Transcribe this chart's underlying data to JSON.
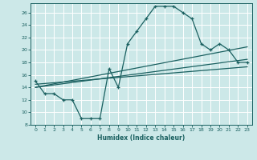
{
  "xlabel": "Humidex (Indice chaleur)",
  "ylabel": "",
  "bg_color": "#cce8e8",
  "grid_color": "#ffffff",
  "line_color": "#1a6060",
  "xlim": [
    -0.5,
    23.5
  ],
  "ylim": [
    8,
    27.5
  ],
  "xticks": [
    0,
    1,
    2,
    3,
    4,
    5,
    6,
    7,
    8,
    9,
    10,
    11,
    12,
    13,
    14,
    15,
    16,
    17,
    18,
    19,
    20,
    21,
    22,
    23
  ],
  "yticks": [
    8,
    10,
    12,
    14,
    16,
    18,
    20,
    22,
    24,
    26
  ],
  "main_x": [
    0,
    1,
    2,
    3,
    4,
    5,
    6,
    7,
    8,
    9,
    10,
    11,
    12,
    13,
    14,
    15,
    16,
    17,
    18,
    19,
    20,
    21,
    22,
    23
  ],
  "main_y": [
    15,
    13,
    13,
    12,
    12,
    9,
    9,
    9,
    17,
    14,
    21,
    23,
    25,
    27,
    27,
    27,
    26,
    25,
    21,
    20,
    21,
    20,
    18,
    18
  ],
  "line1_x": [
    0,
    23
  ],
  "line1_y": [
    14.0,
    20.5
  ],
  "line2_x": [
    0,
    23
  ],
  "line2_y": [
    14.0,
    18.5
  ],
  "line3_x": [
    0,
    23
  ],
  "line3_y": [
    14.5,
    17.3
  ]
}
